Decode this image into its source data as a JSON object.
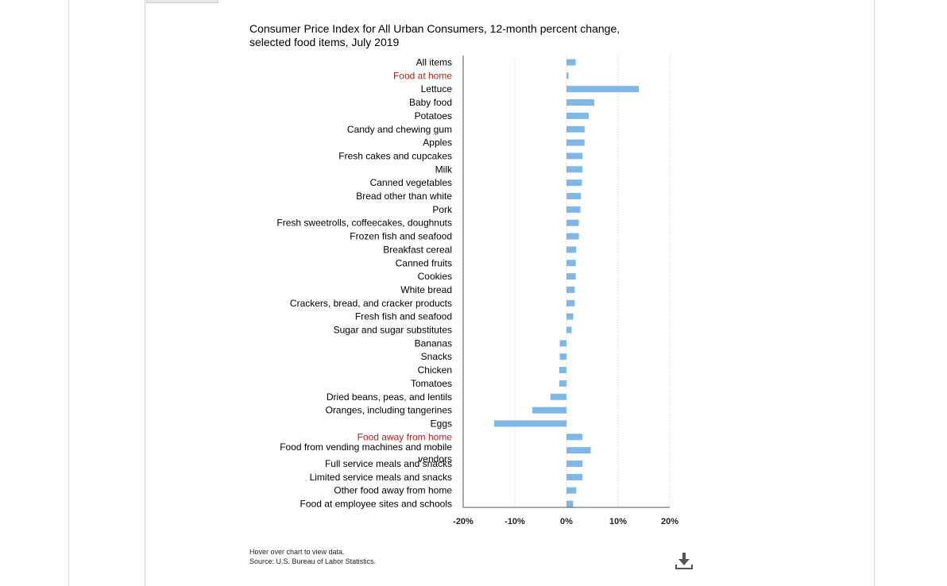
{
  "chart_data": {
    "type": "bar",
    "orientation": "horizontal",
    "title": "Consumer Price Index for All Urban Consumers, 12-month percent change, selected food items, July 2019",
    "xlim": [
      -20,
      20
    ],
    "x_ticks": [
      -20,
      -10,
      0,
      10,
      20
    ],
    "x_tick_labels": [
      "-20%",
      "-10%",
      "0%",
      "10%",
      "20%"
    ],
    "grid": "vertical dotted",
    "bar_color": "#7fb8e6",
    "category_highlight_color": "#b22222",
    "categories": [
      {
        "label": "All items",
        "value": 1.8,
        "highlight": false
      },
      {
        "label": "Food at home",
        "value": 0.4,
        "highlight": true
      },
      {
        "label": "Lettuce",
        "value": 14.0,
        "highlight": false
      },
      {
        "label": "Baby food",
        "value": 5.4,
        "highlight": false
      },
      {
        "label": "Potatoes",
        "value": 4.3,
        "highlight": false
      },
      {
        "label": "Candy and chewing gum",
        "value": 3.5,
        "highlight": false
      },
      {
        "label": "Apples",
        "value": 3.5,
        "highlight": false
      },
      {
        "label": "Fresh cakes and cupcakes",
        "value": 3.1,
        "highlight": false
      },
      {
        "label": "Milk",
        "value": 3.1,
        "highlight": false
      },
      {
        "label": "Canned vegetables",
        "value": 3.0,
        "highlight": false
      },
      {
        "label": "Bread other than white",
        "value": 2.8,
        "highlight": false
      },
      {
        "label": "Pork",
        "value": 2.7,
        "highlight": false
      },
      {
        "label": "Fresh sweetrolls, coffeecakes, doughnuts",
        "value": 2.4,
        "highlight": false
      },
      {
        "label": "Frozen fish and seafood",
        "value": 2.4,
        "highlight": false
      },
      {
        "label": "Breakfast cereal",
        "value": 1.9,
        "highlight": false
      },
      {
        "label": "Canned fruits",
        "value": 1.8,
        "highlight": false
      },
      {
        "label": "Cookies",
        "value": 1.8,
        "highlight": false
      },
      {
        "label": "White bread",
        "value": 1.6,
        "highlight": false
      },
      {
        "label": "Crackers, bread, and cracker products",
        "value": 1.6,
        "highlight": false
      },
      {
        "label": "Fresh fish and seafood",
        "value": 1.3,
        "highlight": false
      },
      {
        "label": "Sugar and sugar substitutes",
        "value": 1.0,
        "highlight": false
      },
      {
        "label": "Bananas",
        "value": -1.3,
        "highlight": false
      },
      {
        "label": "Snacks",
        "value": -1.3,
        "highlight": false
      },
      {
        "label": "Chicken",
        "value": -1.4,
        "highlight": false
      },
      {
        "label": "Tomatoes",
        "value": -1.4,
        "highlight": false
      },
      {
        "label": "Dried beans, peas, and lentils",
        "value": -3.1,
        "highlight": false
      },
      {
        "label": "Oranges, including tangerines",
        "value": -6.6,
        "highlight": false
      },
      {
        "label": "Eggs",
        "value": -14.0,
        "highlight": false
      },
      {
        "label": "Food away from home",
        "value": 3.1,
        "highlight": true
      },
      {
        "label": "Food from vending machines and mobile vendors",
        "value": 4.7,
        "highlight": false
      },
      {
        "label": "Full service meals and snacks",
        "value": 3.1,
        "highlight": false
      },
      {
        "label": "Limited service meals and snacks",
        "value": 3.1,
        "highlight": false
      },
      {
        "label": "Other food away from home",
        "value": 1.9,
        "highlight": false
      },
      {
        "label": "Food at employee sites and schools",
        "value": 1.3,
        "highlight": false
      }
    ]
  },
  "footer": {
    "hover_note": "Hover over chart to view data.",
    "source": "Source: U.S. Bureau of Labor Statistics."
  },
  "icons": {
    "download": "download-icon"
  }
}
